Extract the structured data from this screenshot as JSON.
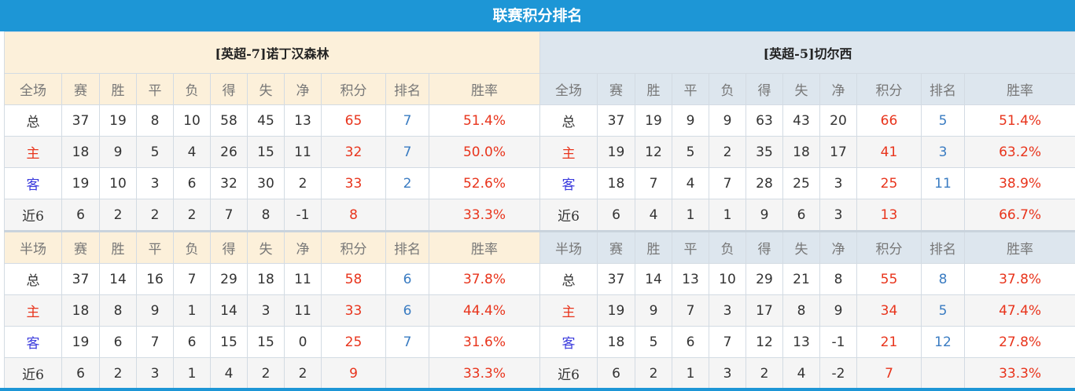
{
  "title": "联赛积分排名",
  "colors": {
    "header_bar": "#1d96d6",
    "points": "#e8341c",
    "rank": "#3a7cc2",
    "home_label": "#e8341c",
    "away_label": "#3b3bdd"
  },
  "columns": [
    "赛",
    "胜",
    "平",
    "负",
    "得",
    "失",
    "净",
    "积分",
    "排名",
    "胜率"
  ],
  "teams": [
    {
      "name": "[英超-7]诺丁汉森林",
      "sections": [
        {
          "header": "全场",
          "rows": [
            {
              "label": "总",
              "values": [
                "37",
                "19",
                "8",
                "10",
                "58",
                "45",
                "13",
                "65",
                "7",
                "51.4%"
              ]
            },
            {
              "label": "主",
              "values": [
                "18",
                "9",
                "5",
                "4",
                "26",
                "15",
                "11",
                "32",
                "7",
                "50.0%"
              ]
            },
            {
              "label": "客",
              "values": [
                "19",
                "10",
                "3",
                "6",
                "32",
                "30",
                "2",
                "33",
                "2",
                "52.6%"
              ]
            },
            {
              "label": "近6",
              "values": [
                "6",
                "2",
                "2",
                "2",
                "7",
                "8",
                "-1",
                "8",
                "",
                "33.3%"
              ]
            }
          ]
        },
        {
          "header": "半场",
          "rows": [
            {
              "label": "总",
              "values": [
                "37",
                "14",
                "16",
                "7",
                "29",
                "18",
                "11",
                "58",
                "6",
                "37.8%"
              ]
            },
            {
              "label": "主",
              "values": [
                "18",
                "8",
                "9",
                "1",
                "14",
                "3",
                "11",
                "33",
                "6",
                "44.4%"
              ]
            },
            {
              "label": "客",
              "values": [
                "19",
                "6",
                "7",
                "6",
                "15",
                "15",
                "0",
                "25",
                "7",
                "31.6%"
              ]
            },
            {
              "label": "近6",
              "values": [
                "6",
                "2",
                "3",
                "1",
                "4",
                "2",
                "2",
                "9",
                "",
                "33.3%"
              ]
            }
          ]
        }
      ]
    },
    {
      "name": "[英超-5]切尔西",
      "sections": [
        {
          "header": "全场",
          "rows": [
            {
              "label": "总",
              "values": [
                "37",
                "19",
                "9",
                "9",
                "63",
                "43",
                "20",
                "66",
                "5",
                "51.4%"
              ]
            },
            {
              "label": "主",
              "values": [
                "19",
                "12",
                "5",
                "2",
                "35",
                "18",
                "17",
                "41",
                "3",
                "63.2%"
              ]
            },
            {
              "label": "客",
              "values": [
                "18",
                "7",
                "4",
                "7",
                "28",
                "25",
                "3",
                "25",
                "11",
                "38.9%"
              ]
            },
            {
              "label": "近6",
              "values": [
                "6",
                "4",
                "1",
                "1",
                "9",
                "6",
                "3",
                "13",
                "",
                "66.7%"
              ]
            }
          ]
        },
        {
          "header": "半场",
          "rows": [
            {
              "label": "总",
              "values": [
                "37",
                "14",
                "13",
                "10",
                "29",
                "21",
                "8",
                "55",
                "8",
                "37.8%"
              ]
            },
            {
              "label": "主",
              "values": [
                "19",
                "9",
                "7",
                "3",
                "17",
                "8",
                "9",
                "34",
                "5",
                "47.4%"
              ]
            },
            {
              "label": "客",
              "values": [
                "18",
                "5",
                "6",
                "7",
                "12",
                "13",
                "-1",
                "21",
                "12",
                "27.8%"
              ]
            },
            {
              "label": "近6",
              "values": [
                "6",
                "2",
                "1",
                "3",
                "2",
                "4",
                "-2",
                "7",
                "",
                "33.3%"
              ]
            }
          ]
        }
      ]
    }
  ]
}
